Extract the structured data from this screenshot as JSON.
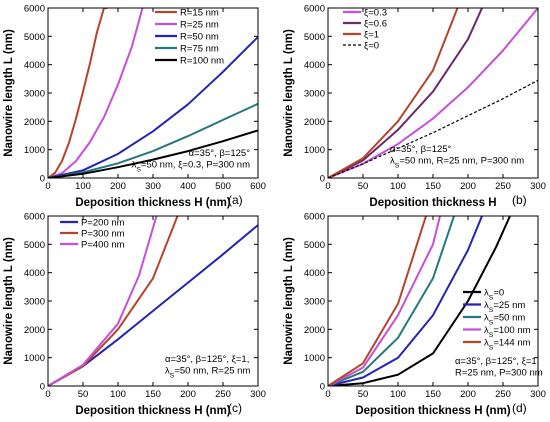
{
  "chart_data": [
    {
      "type": "line",
      "panel_label": "(a)",
      "xlabel": "Deposition thickness H (nm)",
      "ylabel": "Nanowire length L (nm)",
      "xlim": [
        0,
        600
      ],
      "ylim": [
        0,
        6000
      ],
      "xticks": [
        "0",
        "100",
        "200",
        "300",
        "400",
        "500",
        "600"
      ],
      "yticks": [
        "0",
        "1000",
        "2000",
        "3000",
        "4000",
        "5000",
        "6000"
      ],
      "legend_position": "top-right",
      "annotation": [
        "α=35°, β=125°",
        "λ_S=50 nm, ξ=0.3, P=300 nm"
      ],
      "series": [
        {
          "name": "R=15 nm",
          "color": "#b5442b",
          "x": [
            0,
            20,
            40,
            60,
            80,
            100,
            120,
            140,
            160,
            170
          ],
          "y": [
            0,
            180,
            600,
            1250,
            2100,
            3050,
            4050,
            5150,
            6000,
            6000
          ]
        },
        {
          "name": "R=25 nm",
          "color": "#c64fd8",
          "x": [
            0,
            40,
            80,
            120,
            160,
            200,
            240,
            270
          ],
          "y": [
            0,
            170,
            600,
            1270,
            2150,
            3300,
            4650,
            6000
          ]
        },
        {
          "name": "R=50 nm",
          "color": "#2323b5",
          "x": [
            0,
            100,
            200,
            300,
            400,
            500,
            600
          ],
          "y": [
            0,
            270,
            850,
            1650,
            2600,
            3750,
            4980
          ]
        },
        {
          "name": "R=75 nm",
          "color": "#23797e",
          "x": [
            0,
            100,
            200,
            300,
            400,
            500,
            600
          ],
          "y": [
            0,
            200,
            520,
            950,
            1480,
            2050,
            2620
          ]
        },
        {
          "name": "R=100 nm",
          "color": "#000000",
          "x": [
            0,
            100,
            200,
            300,
            400,
            500,
            600
          ],
          "y": [
            0,
            150,
            380,
            650,
            950,
            1300,
            1680
          ]
        }
      ]
    },
    {
      "type": "line",
      "panel_label": "(b)",
      "xlabel": "Deposition thickness H",
      "ylabel": "Nanowire length L (nm)",
      "xlim": [
        0,
        300
      ],
      "ylim": [
        0,
        6000
      ],
      "xticks": [
        "0",
        "50",
        "100",
        "150",
        "200",
        "250",
        "300"
      ],
      "yticks": [
        "0",
        "1000",
        "2000",
        "3000",
        "4000",
        "5000",
        "6000"
      ],
      "legend_position": "top-left",
      "annotation": [
        "α=35°, β=125°",
        "λ_S=50 nm, R=25 nm, P=300 nm"
      ],
      "series": [
        {
          "name": "ξ=0.3",
          "color": "#c64fd8",
          "dashed": false,
          "x": [
            0,
            50,
            100,
            150,
            200,
            250,
            300
          ],
          "y": [
            0,
            500,
            1200,
            2100,
            3200,
            4500,
            6000
          ]
        },
        {
          "name": "ξ=0.6",
          "color": "#6a2a6a",
          "dashed": false,
          "x": [
            0,
            50,
            100,
            150,
            200,
            220
          ],
          "y": [
            0,
            620,
            1700,
            3050,
            4900,
            6000
          ]
        },
        {
          "name": "ξ=1",
          "color": "#b5442b",
          "dashed": false,
          "x": [
            0,
            50,
            100,
            150,
            185
          ],
          "y": [
            0,
            700,
            2000,
            3800,
            6000
          ]
        },
        {
          "name": "ξ=0",
          "color": "#000000",
          "dashed": true,
          "x": [
            0,
            50,
            100,
            150,
            200,
            250,
            300
          ],
          "y": [
            0,
            500,
            1050,
            1600,
            2200,
            2800,
            3450
          ]
        }
      ]
    },
    {
      "type": "line",
      "panel_label": "(c)",
      "xlabel": "Deposition thickness H (nm)",
      "ylabel": "Nanowire length L (nm)",
      "xlim": [
        0,
        300
      ],
      "ylim": [
        0,
        6000
      ],
      "xticks": [
        "0",
        "50",
        "100",
        "150",
        "200",
        "250",
        "300"
      ],
      "yticks": [
        "0",
        "1000",
        "2000",
        "3000",
        "4000",
        "5000",
        "6000"
      ],
      "legend_position": "top-left",
      "annotation": [
        "α=35°, β=125°, ξ=1,",
        "λ_S=50 nm, R=25 nm"
      ],
      "series": [
        {
          "name": "P=200 nm",
          "color": "#2323b5",
          "x": [
            0,
            50,
            100,
            150,
            200,
            250,
            300
          ],
          "y": [
            0,
            700,
            1650,
            2650,
            3650,
            4650,
            5680
          ]
        },
        {
          "name": "P=300 nm",
          "color": "#b5442b",
          "x": [
            0,
            50,
            100,
            150,
            185
          ],
          "y": [
            0,
            700,
            2000,
            3800,
            6000
          ]
        },
        {
          "name": "P=400 nm",
          "color": "#c64fd8",
          "x": [
            0,
            50,
            100,
            130,
            155
          ],
          "y": [
            0,
            750,
            2200,
            3900,
            6000
          ]
        }
      ]
    },
    {
      "type": "line",
      "panel_label": "(d)",
      "xlabel": "Deposition thickness H (nm)",
      "ylabel": "Nanowire length L (nm)",
      "xlim": [
        0,
        300
      ],
      "ylim": [
        0,
        6000
      ],
      "xticks": [
        "0",
        "50",
        "100",
        "150",
        "200",
        "250",
        "300"
      ],
      "yticks": [
        "0",
        "1000",
        "2000",
        "3000",
        "4000",
        "5000",
        "6000"
      ],
      "legend_position": "right",
      "annotation": [
        "α=35°, β=125°, ξ=1,",
        "R=25 nm, P=300 nm"
      ],
      "series": [
        {
          "name": "λ_S=0",
          "color": "#000000",
          "x": [
            0,
            50,
            100,
            150,
            200,
            240,
            260
          ],
          "y": [
            0,
            100,
            400,
            1150,
            3000,
            4900,
            6000
          ]
        },
        {
          "name": "λ_S=25 nm",
          "color": "#2323b5",
          "x": [
            0,
            50,
            100,
            150,
            200,
            220
          ],
          "y": [
            0,
            300,
            1000,
            2500,
            4800,
            6000
          ]
        },
        {
          "name": "λ_S=50 nm",
          "color": "#23797e",
          "x": [
            0,
            50,
            100,
            150,
            180
          ],
          "y": [
            0,
            500,
            1700,
            3800,
            6000
          ]
        },
        {
          "name": "λ_S=100 nm",
          "color": "#c64fd8",
          "x": [
            0,
            50,
            100,
            150,
            160
          ],
          "y": [
            0,
            650,
            2500,
            5000,
            6000
          ]
        },
        {
          "name": "λ_S=144 nm",
          "color": "#b5442b",
          "x": [
            0,
            50,
            100,
            140
          ],
          "y": [
            0,
            800,
            2900,
            6000
          ]
        }
      ]
    }
  ]
}
